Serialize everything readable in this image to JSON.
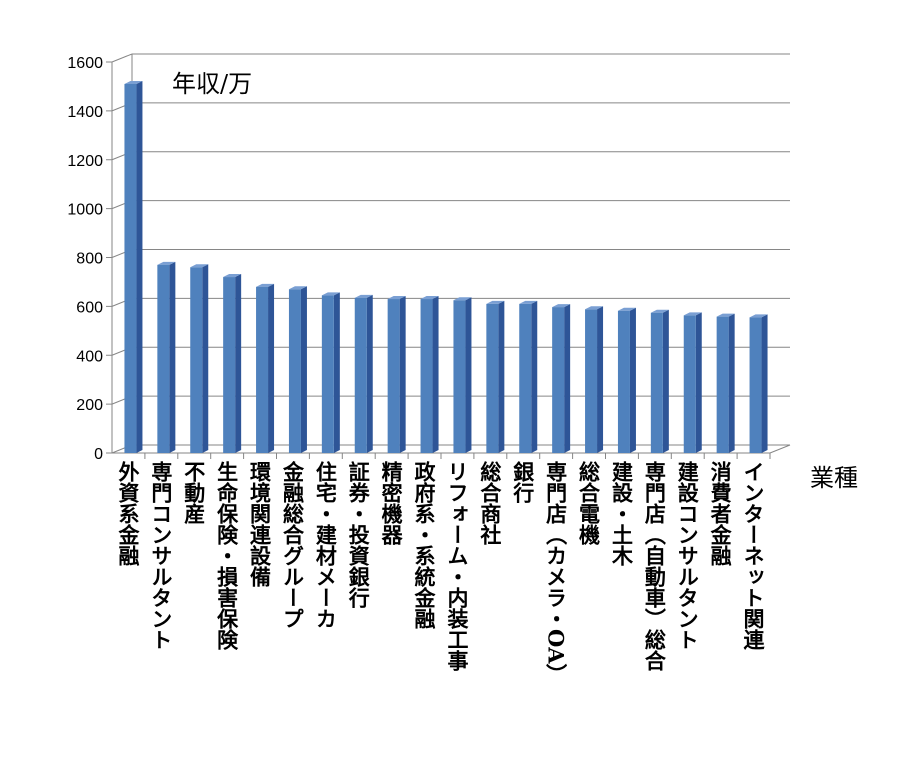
{
  "chart_data": {
    "type": "bar",
    "ylabel": "年収/万",
    "xlabel": "業種",
    "ylim": [
      0,
      1600
    ],
    "ytick_step": 200,
    "grid": true,
    "bar_colors": {
      "front": "#4f81bd",
      "side": "#2e5597",
      "top": "#7a9fd3"
    },
    "categories": [
      "外資系金融",
      "専門コンサルタント",
      "不動産",
      "生命保険・損害保険",
      "環境関連設備",
      "金融総合グループ",
      "住宅・建材メーカ",
      "証券・投資銀行",
      "精密機器",
      "政府系・系統金融",
      "リフォーム・内装工事",
      "総合商社",
      "銀行",
      "専門店（カメラ・OA）",
      "総合電機",
      "建設・土木",
      "専門店（自動車）総合",
      "建設コンサルタント",
      "消費者金融",
      "インターネット関連"
    ],
    "values": [
      1510,
      770,
      760,
      720,
      680,
      670,
      645,
      635,
      630,
      630,
      625,
      610,
      610,
      597,
      588,
      582,
      574,
      563,
      558,
      555
    ]
  }
}
